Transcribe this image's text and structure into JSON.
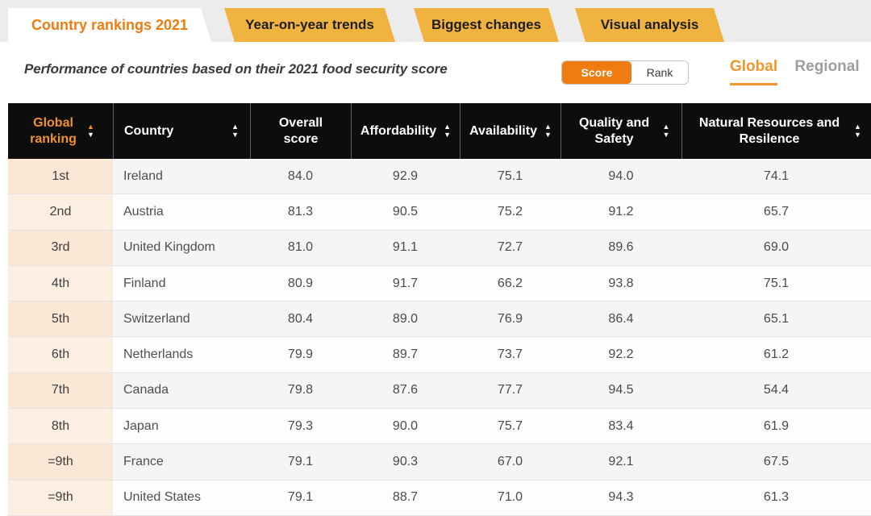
{
  "tabs": [
    {
      "label": "Country rankings 2021",
      "active": true
    },
    {
      "label": "Year-on-year trends",
      "active": false
    },
    {
      "label": "Biggest changes",
      "active": false
    },
    {
      "label": "Visual analysis",
      "active": false
    }
  ],
  "subtitle": "Performance of countries based on their 2021 food security score",
  "view_toggle": {
    "score_label": "Score",
    "rank_label": "Rank",
    "selected": "Score"
  },
  "scope_toggle": {
    "global_label": "Global",
    "regional_label": "Regional",
    "selected": "Global"
  },
  "table": {
    "columns": [
      {
        "label": "Global ranking",
        "sortable": true,
        "sort_state": "ascending"
      },
      {
        "label": "Country",
        "sortable": true,
        "sort_state": "none"
      },
      {
        "label": "Overall score",
        "sortable": false,
        "sort_state": "none"
      },
      {
        "label": "Affordability",
        "sortable": true,
        "sort_state": "none"
      },
      {
        "label": "Availability",
        "sortable": true,
        "sort_state": "none"
      },
      {
        "label": "Quality and Safety",
        "sortable": true,
        "sort_state": "none"
      },
      {
        "label": "Natural Resources and Resilence",
        "sortable": true,
        "sort_state": "none"
      }
    ],
    "rows": [
      {
        "rank": "1st",
        "country": "Ireland",
        "overall_score": "84.0",
        "affordability": "92.9",
        "availability": "75.1",
        "quality_and_safety": "94.0",
        "natural_resources_resilience": "74.1"
      },
      {
        "rank": "2nd",
        "country": "Austria",
        "overall_score": "81.3",
        "affordability": "90.5",
        "availability": "75.2",
        "quality_and_safety": "91.2",
        "natural_resources_resilience": "65.7"
      },
      {
        "rank": "3rd",
        "country": "United Kingdom",
        "overall_score": "81.0",
        "affordability": "91.1",
        "availability": "72.7",
        "quality_and_safety": "89.6",
        "natural_resources_resilience": "69.0"
      },
      {
        "rank": "4th",
        "country": "Finland",
        "overall_score": "80.9",
        "affordability": "91.7",
        "availability": "66.2",
        "quality_and_safety": "93.8",
        "natural_resources_resilience": "75.1"
      },
      {
        "rank": "5th",
        "country": "Switzerland",
        "overall_score": "80.4",
        "affordability": "89.0",
        "availability": "76.9",
        "quality_and_safety": "86.4",
        "natural_resources_resilience": "65.1"
      },
      {
        "rank": "6th",
        "country": "Netherlands",
        "overall_score": "79.9",
        "affordability": "89.7",
        "availability": "73.7",
        "quality_and_safety": "92.2",
        "natural_resources_resilience": "61.2"
      },
      {
        "rank": "7th",
        "country": "Canada",
        "overall_score": "79.8",
        "affordability": "87.6",
        "availability": "77.7",
        "quality_and_safety": "94.5",
        "natural_resources_resilience": "54.4"
      },
      {
        "rank": "8th",
        "country": "Japan",
        "overall_score": "79.3",
        "affordability": "90.0",
        "availability": "75.7",
        "quality_and_safety": "83.4",
        "natural_resources_resilience": "61.9"
      },
      {
        "rank": "=9th",
        "country": "France",
        "overall_score": "79.1",
        "affordability": "90.3",
        "availability": "67.0",
        "quality_and_safety": "92.1",
        "natural_resources_resilience": "67.5"
      },
      {
        "rank": "=9th",
        "country": "United States",
        "overall_score": "79.1",
        "affordability": "88.7",
        "availability": "71.0",
        "quality_and_safety": "94.3",
        "natural_resources_resilience": "61.3"
      }
    ]
  },
  "colors": {
    "accent_orange": "#ee7c10",
    "tab_amber": "#f1b340",
    "table_header_bg": "#0d0d0d",
    "sorted_column_orange": "#f0922f",
    "rank_column_peach": "#fae7d5",
    "row_alt_gray": "#f5f5f7"
  }
}
